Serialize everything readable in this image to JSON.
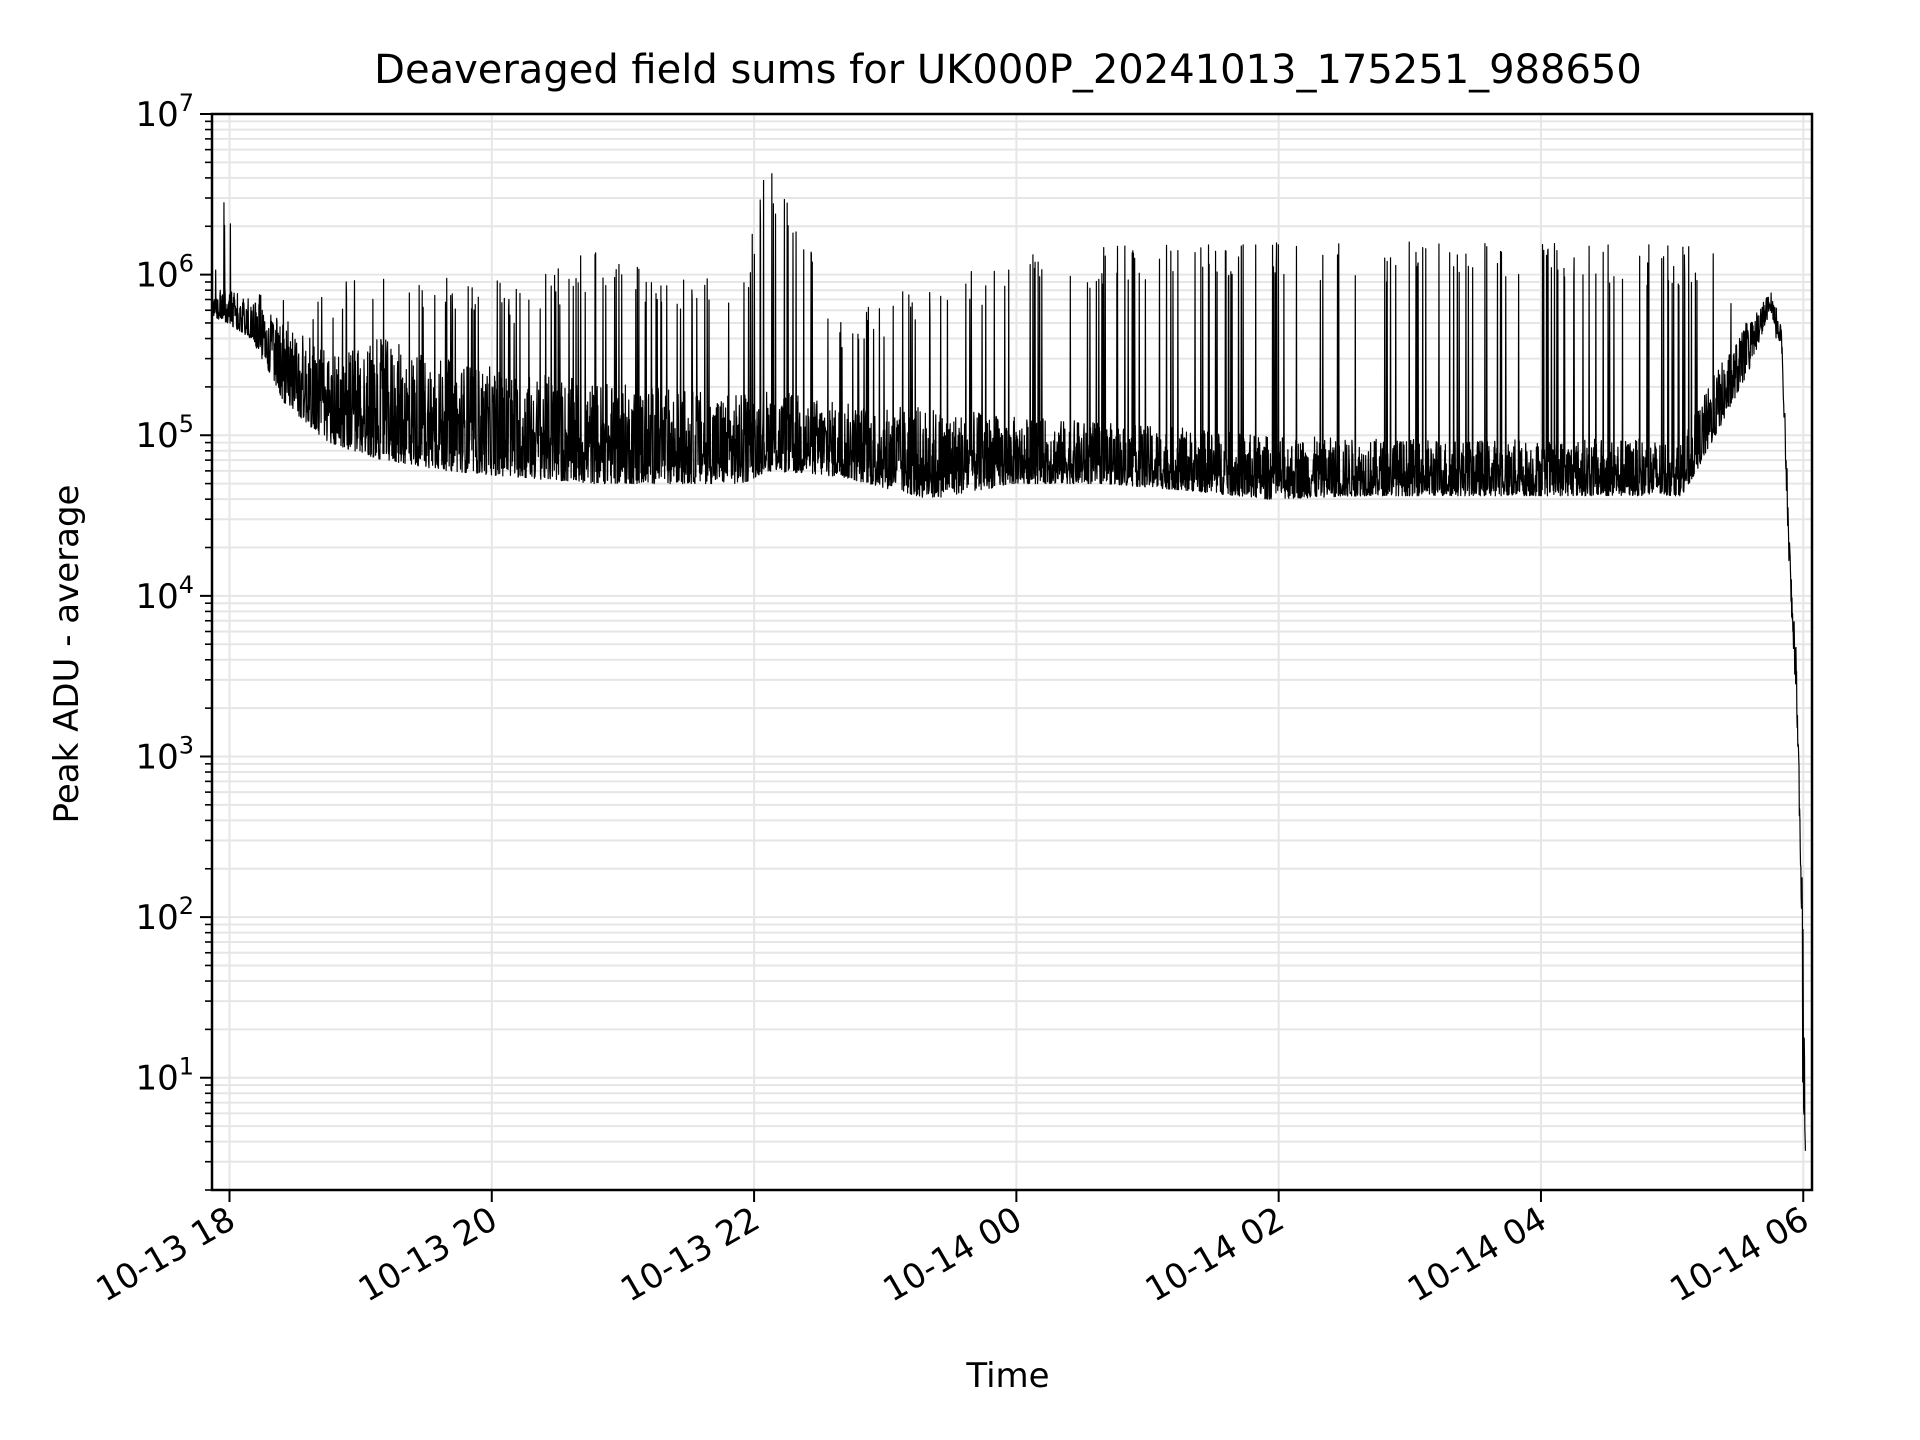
{
  "chart_data": {
    "type": "line",
    "title": "Deaveraged field sums for UK000P_20241013_175251_988650",
    "xlabel": "Time",
    "ylabel": "Peak ADU - average",
    "yscale": "log",
    "ylim": [
      2,
      10000000
    ],
    "xlim": [
      "2024-10-13 17:52",
      "2024-10-14 06:04"
    ],
    "grid": true,
    "x_ticks": [
      {
        "value": "2024-10-13 18:00",
        "label": "10-13 18"
      },
      {
        "value": "2024-10-13 20:00",
        "label": "10-13 20"
      },
      {
        "value": "2024-10-13 22:00",
        "label": "10-13 22"
      },
      {
        "value": "2024-10-14 00:00",
        "label": "10-14 00"
      },
      {
        "value": "2024-10-14 02:00",
        "label": "10-14 02"
      },
      {
        "value": "2024-10-14 04:00",
        "label": "10-14 04"
      },
      {
        "value": "2024-10-14 06:00",
        "label": "10-14 06"
      }
    ],
    "y_ticks": [
      {
        "value": 10,
        "base": "10",
        "exp": "1"
      },
      {
        "value": 100,
        "base": "10",
        "exp": "2"
      },
      {
        "value": 1000,
        "base": "10",
        "exp": "3"
      },
      {
        "value": 10000,
        "base": "10",
        "exp": "4"
      },
      {
        "value": 100000,
        "base": "10",
        "exp": "5"
      },
      {
        "value": 1000000,
        "base": "10",
        "exp": "6"
      },
      {
        "value": 10000000,
        "base": "10",
        "exp": "7"
      }
    ],
    "series": [
      {
        "color": "#000000",
        "envelope": [
          {
            "x": "2024-10-13 17:52",
            "low": 550000,
            "high": 700000,
            "spike": 1500000
          },
          {
            "x": "2024-10-13 17:59",
            "low": 500000,
            "high": 900000,
            "spike": 3600000
          },
          {
            "x": "2024-10-13 18:10",
            "low": 400000,
            "high": 700000,
            "spike": 900000
          },
          {
            "x": "2024-10-13 18:25",
            "low": 160000,
            "high": 500000,
            "spike": 700000
          },
          {
            "x": "2024-10-13 18:45",
            "low": 90000,
            "high": 350000,
            "spike": 800000
          },
          {
            "x": "2024-10-13 19:10",
            "low": 70000,
            "high": 400000,
            "spike": 1200000
          },
          {
            "x": "2024-10-13 19:40",
            "low": 60000,
            "high": 300000,
            "spike": 1000000
          },
          {
            "x": "2024-10-13 20:10",
            "low": 55000,
            "high": 250000,
            "spike": 900000
          },
          {
            "x": "2024-10-13 20:45",
            "low": 50000,
            "high": 220000,
            "spike": 1400000
          },
          {
            "x": "2024-10-13 21:20",
            "low": 50000,
            "high": 200000,
            "spike": 1000000
          },
          {
            "x": "2024-10-13 21:55",
            "low": 50000,
            "high": 180000,
            "spike": 1000000
          },
          {
            "x": "2024-10-13 22:06",
            "low": 60000,
            "high": 200000,
            "spike": 5000000
          },
          {
            "x": "2024-10-13 22:40",
            "low": 55000,
            "high": 160000,
            "spike": 600000
          },
          {
            "x": "2024-10-13 23:20",
            "low": 40000,
            "high": 150000,
            "spike": 900000
          },
          {
            "x": "2024-10-14 00:00",
            "low": 50000,
            "high": 130000,
            "spike": 1300000
          },
          {
            "x": "2024-10-14 00:40",
            "low": 50000,
            "high": 120000,
            "spike": 1500000
          },
          {
            "x": "2024-10-14 01:20",
            "low": 45000,
            "high": 110000,
            "spike": 1600000
          },
          {
            "x": "2024-10-14 01:55",
            "low": 40000,
            "high": 100000,
            "spike": 1600000
          },
          {
            "x": "2024-10-14 02:40",
            "low": 42000,
            "high": 95000,
            "spike": 1600000
          },
          {
            "x": "2024-10-14 03:30",
            "low": 42000,
            "high": 95000,
            "spike": 1600000
          },
          {
            "x": "2024-10-14 04:20",
            "low": 42000,
            "high": 95000,
            "spike": 1600000
          },
          {
            "x": "2024-10-14 05:05",
            "low": 42000,
            "high": 95000,
            "spike": 1500000
          },
          {
            "x": "2024-10-14 05:20",
            "low": 100000,
            "high": 250000,
            "spike": 1500000
          },
          {
            "x": "2024-10-14 05:35",
            "low": 250000,
            "high": 500000,
            "spike": 500000
          },
          {
            "x": "2024-10-14 05:45",
            "low": 600000,
            "high": 800000,
            "spike": 800000
          },
          {
            "x": "2024-10-14 05:50",
            "low": 350000,
            "high": 500000,
            "spike": 500000
          },
          {
            "x": "2024-10-14 05:54",
            "low": 10000,
            "high": 20000,
            "spike": 20000
          },
          {
            "x": "2024-10-14 05:57",
            "low": 2000,
            "high": 4000,
            "spike": 4000
          },
          {
            "x": "2024-10-14 05:59",
            "low": 150,
            "high": 300,
            "spike": 300
          },
          {
            "x": "2024-10-14 06:00",
            "low": 3.5,
            "high": 100,
            "spike": 100
          },
          {
            "x": "2024-10-14 06:01",
            "low": 3.5,
            "high": 4,
            "spike": 4
          }
        ]
      }
    ]
  }
}
